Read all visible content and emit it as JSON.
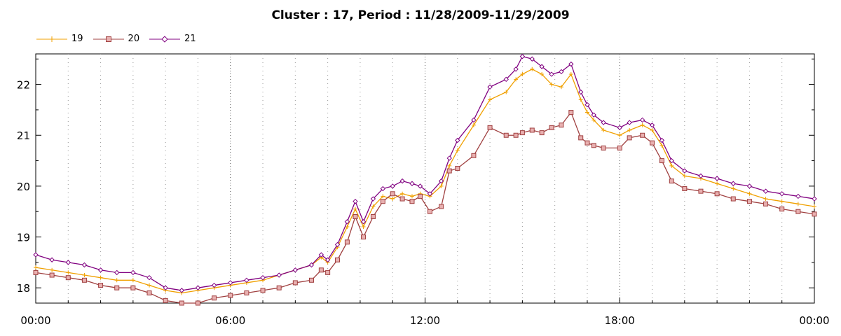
{
  "chart_data": {
    "type": "line",
    "title": "Cluster : 17, Period : 11/28/2009-11/29/2009",
    "xlabel": "",
    "ylabel": "",
    "x_ticks": [
      "00:00",
      "06:00",
      "12:00",
      "18:00",
      "00:00"
    ],
    "y_ticks": [
      "18",
      "19",
      "20",
      "21",
      "22"
    ],
    "xlim": [
      0,
      24
    ],
    "ylim": [
      17.7,
      22.6
    ],
    "grid": true,
    "legend_position": "top-left",
    "series": [
      {
        "name": "19",
        "color": "#f0a000",
        "marker": "plus",
        "x": [
          0,
          0.5,
          1,
          1.5,
          2,
          2.5,
          3,
          3.5,
          4,
          4.5,
          5,
          5.5,
          6,
          6.5,
          7,
          7.5,
          8,
          8.5,
          8.8,
          9,
          9.3,
          9.6,
          9.85,
          10.1,
          10.4,
          10.7,
          11,
          11.3,
          11.6,
          11.85,
          12.15,
          12.5,
          12.75,
          13,
          13.5,
          14,
          14.5,
          14.8,
          15,
          15.3,
          15.6,
          15.9,
          16.2,
          16.5,
          16.8,
          17,
          17.2,
          17.5,
          18,
          18.3,
          18.7,
          19,
          19.3,
          19.6,
          20,
          20.5,
          21,
          21.5,
          22,
          22.5,
          23,
          23.5,
          24
        ],
        "values": [
          18.4,
          18.35,
          18.3,
          18.25,
          18.2,
          18.15,
          18.15,
          18.05,
          17.95,
          17.9,
          17.95,
          18.0,
          18.05,
          18.1,
          18.15,
          18.25,
          18.35,
          18.45,
          18.6,
          18.5,
          18.8,
          19.2,
          19.55,
          19.2,
          19.6,
          19.8,
          19.75,
          19.85,
          19.8,
          19.85,
          19.8,
          20.0,
          20.4,
          20.7,
          21.2,
          21.7,
          21.85,
          22.1,
          22.2,
          22.3,
          22.2,
          22.0,
          21.95,
          22.2,
          21.7,
          21.45,
          21.3,
          21.1,
          21.0,
          21.1,
          21.2,
          21.1,
          20.8,
          20.4,
          20.2,
          20.15,
          20.05,
          19.95,
          19.85,
          19.75,
          19.7,
          19.65,
          19.6
        ]
      },
      {
        "name": "20",
        "color": "#a04040",
        "marker": "square",
        "x": [
          0,
          0.5,
          1,
          1.5,
          2,
          2.5,
          3,
          3.5,
          4,
          4.5,
          5,
          5.5,
          6,
          6.5,
          7,
          7.5,
          8,
          8.5,
          8.8,
          9,
          9.3,
          9.6,
          9.85,
          10.1,
          10.4,
          10.7,
          11,
          11.3,
          11.6,
          11.85,
          12.15,
          12.5,
          12.75,
          13,
          13.5,
          14,
          14.5,
          14.8,
          15,
          15.3,
          15.6,
          15.9,
          16.2,
          16.5,
          16.8,
          17,
          17.2,
          17.5,
          18,
          18.3,
          18.7,
          19,
          19.3,
          19.6,
          20,
          20.5,
          21,
          21.5,
          22,
          22.5,
          23,
          23.5,
          24
        ],
        "values": [
          18.3,
          18.25,
          18.2,
          18.15,
          18.05,
          18.0,
          18.0,
          17.9,
          17.75,
          17.7,
          17.7,
          17.8,
          17.85,
          17.9,
          17.95,
          18.0,
          18.1,
          18.15,
          18.35,
          18.3,
          18.55,
          18.9,
          19.4,
          19.0,
          19.4,
          19.7,
          19.85,
          19.75,
          19.7,
          19.8,
          19.5,
          19.6,
          20.3,
          20.35,
          20.6,
          21.15,
          21.0,
          21.0,
          21.05,
          21.1,
          21.05,
          21.15,
          21.2,
          21.45,
          20.95,
          20.85,
          20.8,
          20.75,
          20.75,
          20.95,
          21.0,
          20.85,
          20.5,
          20.1,
          19.95,
          19.9,
          19.85,
          19.75,
          19.7,
          19.65,
          19.55,
          19.5,
          19.45
        ]
      },
      {
        "name": "21",
        "color": "#800080",
        "marker": "diamond",
        "x": [
          0,
          0.5,
          1,
          1.5,
          2,
          2.5,
          3,
          3.5,
          4,
          4.5,
          5,
          5.5,
          6,
          6.5,
          7,
          7.5,
          8,
          8.5,
          8.8,
          9,
          9.3,
          9.6,
          9.85,
          10.1,
          10.4,
          10.7,
          11,
          11.3,
          11.6,
          11.85,
          12.15,
          12.5,
          12.75,
          13,
          13.5,
          14,
          14.5,
          14.8,
          15,
          15.3,
          15.6,
          15.9,
          16.2,
          16.5,
          16.8,
          17,
          17.2,
          17.5,
          18,
          18.3,
          18.7,
          19,
          19.3,
          19.6,
          20,
          20.5,
          21,
          21.5,
          22,
          22.5,
          23,
          23.5,
          24
        ],
        "values": [
          18.65,
          18.55,
          18.5,
          18.45,
          18.35,
          18.3,
          18.3,
          18.2,
          18.0,
          17.95,
          18.0,
          18.05,
          18.1,
          18.15,
          18.2,
          18.25,
          18.35,
          18.45,
          18.65,
          18.55,
          18.85,
          19.3,
          19.7,
          19.3,
          19.75,
          19.95,
          20.0,
          20.1,
          20.05,
          20.0,
          19.85,
          20.1,
          20.55,
          20.9,
          21.3,
          21.95,
          22.1,
          22.3,
          22.55,
          22.5,
          22.35,
          22.2,
          22.25,
          22.4,
          21.85,
          21.6,
          21.4,
          21.25,
          21.15,
          21.25,
          21.3,
          21.2,
          20.9,
          20.5,
          20.3,
          20.2,
          20.15,
          20.05,
          20.0,
          19.9,
          19.85,
          19.8,
          19.75
        ]
      }
    ]
  }
}
